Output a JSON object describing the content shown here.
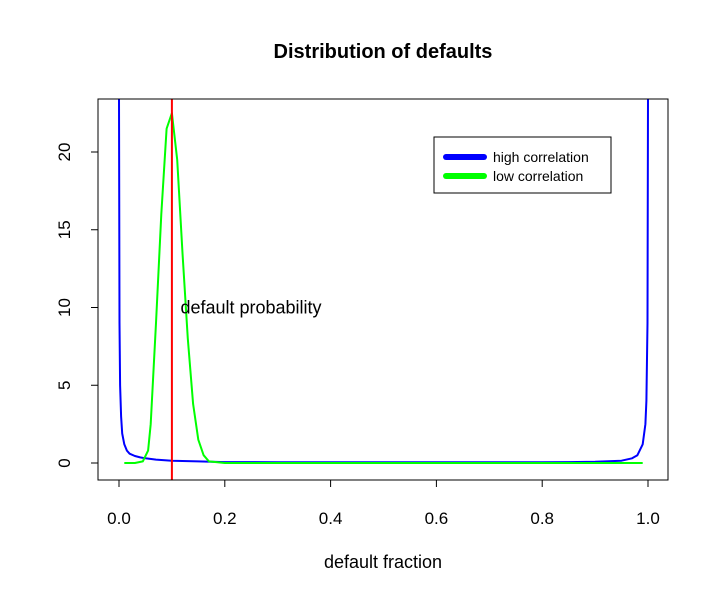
{
  "chart_data": {
    "type": "line",
    "title": "Distribution of defaults",
    "xlabel": "default fraction",
    "ylabel": "",
    "xlim": [
      0.0,
      1.0
    ],
    "ylim": [
      0,
      23
    ],
    "x_ticks": [
      "0.0",
      "0.2",
      "0.4",
      "0.6",
      "0.8",
      "1.0"
    ],
    "x_tick_values": [
      0.0,
      0.2,
      0.4,
      0.6,
      0.8,
      1.0
    ],
    "y_ticks": [
      "0",
      "5",
      "10",
      "15",
      "20"
    ],
    "y_tick_values": [
      0,
      5,
      10,
      15,
      20
    ],
    "grid": false,
    "legend_position": "top-right",
    "series": [
      {
        "name": "high correlation",
        "color": "#0000ff",
        "x": [
          0.0,
          0.001,
          0.002,
          0.004,
          0.006,
          0.01,
          0.015,
          0.02,
          0.03,
          0.04,
          0.05,
          0.07,
          0.1,
          0.15,
          0.2,
          0.3,
          0.4,
          0.5,
          0.6,
          0.7,
          0.8,
          0.85,
          0.9,
          0.95,
          0.97,
          0.98,
          0.99,
          0.995,
          0.997,
          0.999,
          1.0
        ],
        "y": [
          23.5,
          9.0,
          5.0,
          3.0,
          1.9,
          1.2,
          0.8,
          0.6,
          0.45,
          0.36,
          0.3,
          0.22,
          0.15,
          0.1,
          0.06,
          0.05,
          0.05,
          0.05,
          0.05,
          0.05,
          0.05,
          0.06,
          0.08,
          0.15,
          0.3,
          0.5,
          1.2,
          2.5,
          4.0,
          9.0,
          23.5
        ]
      },
      {
        "name": "low correlation",
        "color": "#00ff00",
        "x": [
          0.01,
          0.03,
          0.045,
          0.055,
          0.06,
          0.07,
          0.08,
          0.09,
          0.1,
          0.11,
          0.12,
          0.13,
          0.14,
          0.15,
          0.16,
          0.17,
          0.2,
          0.3,
          0.5,
          0.7,
          0.9,
          0.99
        ],
        "y": [
          0,
          0,
          0.1,
          0.8,
          2.5,
          9.0,
          16.0,
          21.5,
          22.5,
          19.5,
          13.5,
          8.0,
          3.8,
          1.5,
          0.5,
          0.1,
          0,
          0,
          0,
          0,
          0,
          0
        ]
      }
    ],
    "vline": {
      "x": 0.1,
      "color": "#ff0000"
    },
    "annotation": {
      "text": "default probability",
      "x": 0.12,
      "y": 10
    }
  }
}
